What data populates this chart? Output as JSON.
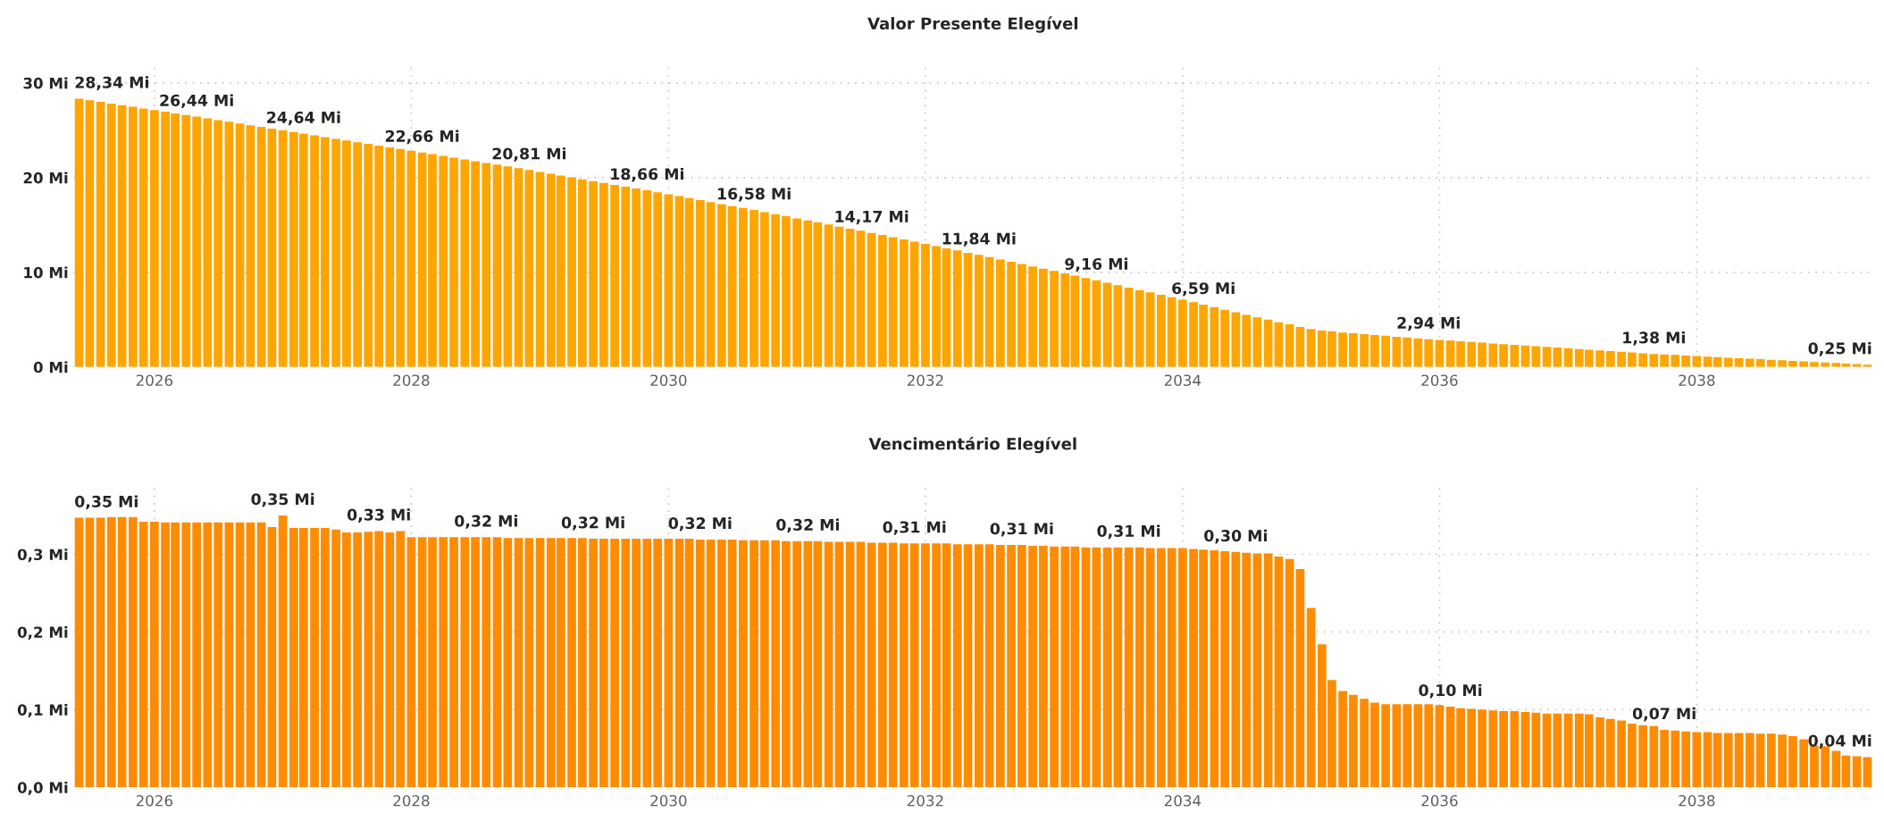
{
  "chart_data": [
    {
      "type": "bar",
      "title": "Valor Presente Elegível",
      "x": [
        "2025-06",
        "2025-07",
        "2025-08",
        "2025-09",
        "2025-10",
        "2025-11",
        "2025-12",
        "2026-01",
        "2026-02",
        "2026-03",
        "2026-04",
        "2026-05",
        "2026-06",
        "2026-07",
        "2026-08",
        "2026-09",
        "2026-10",
        "2026-11",
        "2026-12",
        "2027-01",
        "2027-02",
        "2027-03",
        "2027-04",
        "2027-05",
        "2027-06",
        "2027-07",
        "2027-08",
        "2027-09",
        "2027-10",
        "2027-11",
        "2027-12",
        "2028-01",
        "2028-02",
        "2028-03",
        "2028-04",
        "2028-05",
        "2028-06",
        "2028-07",
        "2028-08",
        "2028-09",
        "2028-10",
        "2028-11",
        "2028-12",
        "2029-01",
        "2029-02",
        "2029-03",
        "2029-04",
        "2029-05",
        "2029-06",
        "2029-07",
        "2029-08",
        "2029-09",
        "2029-10",
        "2029-11",
        "2029-12",
        "2030-01",
        "2030-02",
        "2030-03",
        "2030-04",
        "2030-05",
        "2030-06",
        "2030-07",
        "2030-08",
        "2030-09",
        "2030-10",
        "2030-11",
        "2030-12",
        "2031-01",
        "2031-02",
        "2031-03",
        "2031-04",
        "2031-05",
        "2031-06",
        "2031-07",
        "2031-08",
        "2031-09",
        "2031-10",
        "2031-11",
        "2031-12",
        "2032-01",
        "2032-02",
        "2032-03",
        "2032-04",
        "2032-05",
        "2032-06",
        "2032-07",
        "2032-08",
        "2032-09",
        "2032-10",
        "2032-11",
        "2032-12",
        "2033-01",
        "2033-02",
        "2033-03",
        "2033-04",
        "2033-05",
        "2033-06",
        "2033-07",
        "2033-08",
        "2033-09",
        "2033-10",
        "2033-11",
        "2033-12",
        "2034-01",
        "2034-02",
        "2034-03",
        "2034-04",
        "2034-05",
        "2034-06",
        "2034-07",
        "2034-08",
        "2034-09",
        "2034-10",
        "2034-11",
        "2034-12",
        "2035-01",
        "2035-02",
        "2035-03",
        "2035-04",
        "2035-05",
        "2035-06",
        "2035-07",
        "2035-08",
        "2035-09",
        "2035-10",
        "2035-11",
        "2035-12",
        "2036-01",
        "2036-02",
        "2036-03",
        "2036-04",
        "2036-05",
        "2036-06",
        "2036-07",
        "2036-08",
        "2036-09",
        "2036-10",
        "2036-11",
        "2036-12",
        "2037-01",
        "2037-02",
        "2037-03",
        "2037-04",
        "2037-05",
        "2037-06",
        "2037-07",
        "2037-08",
        "2037-09",
        "2037-10",
        "2037-11",
        "2037-12",
        "2038-01",
        "2038-02",
        "2038-03",
        "2038-04",
        "2038-05",
        "2038-06",
        "2038-07",
        "2038-08",
        "2038-09",
        "2038-10",
        "2038-11",
        "2038-12",
        "2039-01",
        "2039-02",
        "2039-03",
        "2039-04",
        "2039-05"
      ],
      "values": [
        28.34,
        28.17,
        28.0,
        27.82,
        27.65,
        27.48,
        27.3,
        27.13,
        26.96,
        26.79,
        26.61,
        26.44,
        26.26,
        26.08,
        25.9,
        25.72,
        25.54,
        25.36,
        25.18,
        25.0,
        24.82,
        24.64,
        24.46,
        24.28,
        24.1,
        23.92,
        23.74,
        23.56,
        23.38,
        23.2,
        23.02,
        22.84,
        22.66,
        22.48,
        22.29,
        22.11,
        21.92,
        21.74,
        21.55,
        21.37,
        21.18,
        21.0,
        20.81,
        20.61,
        20.42,
        20.22,
        20.03,
        19.83,
        19.64,
        19.44,
        19.24,
        19.05,
        18.85,
        18.66,
        18.45,
        18.24,
        18.04,
        17.83,
        17.62,
        17.41,
        17.2,
        17.0,
        16.79,
        16.58,
        16.36,
        16.14,
        15.92,
        15.7,
        15.48,
        15.27,
        15.05,
        14.83,
        14.61,
        14.39,
        14.17,
        13.94,
        13.7,
        13.47,
        13.24,
        13.01,
        12.77,
        12.54,
        12.31,
        12.07,
        11.84,
        11.6,
        11.35,
        11.11,
        10.87,
        10.62,
        10.38,
        10.14,
        9.89,
        9.65,
        9.4,
        9.16,
        8.9,
        8.65,
        8.39,
        8.13,
        7.88,
        7.62,
        7.36,
        7.1,
        6.85,
        6.59,
        6.32,
        6.05,
        5.78,
        5.51,
        5.25,
        5.0,
        4.72,
        4.51,
        4.22,
        4.02,
        3.85,
        3.77,
        3.64,
        3.56,
        3.48,
        3.38,
        3.3,
        3.2,
        3.12,
        3.03,
        2.94,
        2.87,
        2.79,
        2.72,
        2.64,
        2.57,
        2.49,
        2.42,
        2.35,
        2.27,
        2.2,
        2.12,
        2.05,
        1.98,
        1.9,
        1.83,
        1.75,
        1.68,
        1.6,
        1.53,
        1.45,
        1.38,
        1.32,
        1.27,
        1.21,
        1.15,
        1.1,
        1.04,
        0.98,
        0.93,
        0.87,
        0.82,
        0.76,
        0.7,
        0.65,
        0.59,
        0.53,
        0.48,
        0.42,
        0.36,
        0.31,
        0.25
      ],
      "color": "#ffa500",
      "xlim": [
        "2025-05-16",
        "2039-05-16"
      ],
      "xticks": [
        {
          "value": "2026-01-01",
          "label": "2026"
        },
        {
          "value": "2028-01-01",
          "label": "2028"
        },
        {
          "value": "2030-01-01",
          "label": "2030"
        },
        {
          "value": "2032-01-01",
          "label": "2032"
        },
        {
          "value": "2034-01-01",
          "label": "2034"
        },
        {
          "value": "2036-01-01",
          "label": "2036"
        },
        {
          "value": "2038-01-01",
          "label": "2038"
        }
      ],
      "ylim": [
        0,
        32
      ],
      "yticks": [
        {
          "value": 0,
          "label": "0 Mi"
        },
        {
          "value": 10,
          "label": "10 Mi"
        },
        {
          "value": 20,
          "label": "20 Mi"
        },
        {
          "value": 30,
          "label": "30 Mi"
        }
      ],
      "grid": true,
      "annotations": [
        {
          "text": "28,34 Mi",
          "x": "2025-06",
          "y": 28.34
        },
        {
          "text": "26,44 Mi",
          "x": "2026-05",
          "y": 26.44
        },
        {
          "text": "24,64 Mi",
          "x": "2027-03",
          "y": 24.64
        },
        {
          "text": "22,66 Mi",
          "x": "2028-02",
          "y": 22.66
        },
        {
          "text": "20,81 Mi",
          "x": "2028-12",
          "y": 20.81
        },
        {
          "text": "18,66 Mi",
          "x": "2029-11",
          "y": 18.66
        },
        {
          "text": "16,58 Mi",
          "x": "2030-09",
          "y": 16.58
        },
        {
          "text": "14,17 Mi",
          "x": "2031-08",
          "y": 14.17
        },
        {
          "text": "11,84 Mi",
          "x": "2032-06",
          "y": 11.84
        },
        {
          "text": "9,16 Mi",
          "x": "2033-05",
          "y": 9.16
        },
        {
          "text": "6,59 Mi",
          "x": "2034-03",
          "y": 6.59
        },
        {
          "text": "2,94 Mi",
          "x": "2035-12",
          "y": 2.94
        },
        {
          "text": "1,38 Mi",
          "x": "2037-09",
          "y": 1.38
        },
        {
          "text": "0,25 Mi",
          "x": "2039-05",
          "y": 0.25
        }
      ]
    },
    {
      "type": "bar",
      "title": "Vencimentário Elegível",
      "x": [
        "2025-06",
        "2025-07",
        "2025-08",
        "2025-09",
        "2025-10",
        "2025-11",
        "2025-12",
        "2026-01",
        "2026-02",
        "2026-03",
        "2026-04",
        "2026-05",
        "2026-06",
        "2026-07",
        "2026-08",
        "2026-09",
        "2026-10",
        "2026-11",
        "2026-12",
        "2027-01",
        "2027-02",
        "2027-03",
        "2027-04",
        "2027-05",
        "2027-06",
        "2027-07",
        "2027-08",
        "2027-09",
        "2027-10",
        "2027-11",
        "2027-12",
        "2028-01",
        "2028-02",
        "2028-03",
        "2028-04",
        "2028-05",
        "2028-06",
        "2028-07",
        "2028-08",
        "2028-09",
        "2028-10",
        "2028-11",
        "2028-12",
        "2029-01",
        "2029-02",
        "2029-03",
        "2029-04",
        "2029-05",
        "2029-06",
        "2029-07",
        "2029-08",
        "2029-09",
        "2029-10",
        "2029-11",
        "2029-12",
        "2030-01",
        "2030-02",
        "2030-03",
        "2030-04",
        "2030-05",
        "2030-06",
        "2030-07",
        "2030-08",
        "2030-09",
        "2030-10",
        "2030-11",
        "2030-12",
        "2031-01",
        "2031-02",
        "2031-03",
        "2031-04",
        "2031-05",
        "2031-06",
        "2031-07",
        "2031-08",
        "2031-09",
        "2031-10",
        "2031-11",
        "2031-12",
        "2032-01",
        "2032-02",
        "2032-03",
        "2032-04",
        "2032-05",
        "2032-06",
        "2032-07",
        "2032-08",
        "2032-09",
        "2032-10",
        "2032-11",
        "2032-12",
        "2033-01",
        "2033-02",
        "2033-03",
        "2033-04",
        "2033-05",
        "2033-06",
        "2033-07",
        "2033-08",
        "2033-09",
        "2033-10",
        "2033-11",
        "2033-12",
        "2034-01",
        "2034-02",
        "2034-03",
        "2034-04",
        "2034-05",
        "2034-06",
        "2034-07",
        "2034-08",
        "2034-09",
        "2034-10",
        "2034-11",
        "2034-12",
        "2035-01",
        "2035-02",
        "2035-03",
        "2035-04",
        "2035-05",
        "2035-06",
        "2035-07",
        "2035-08",
        "2035-09",
        "2035-10",
        "2035-11",
        "2035-12",
        "2036-01",
        "2036-02",
        "2036-03",
        "2036-04",
        "2036-05",
        "2036-06",
        "2036-07",
        "2036-08",
        "2036-09",
        "2036-10",
        "2036-11",
        "2036-12",
        "2037-01",
        "2037-02",
        "2037-03",
        "2037-04",
        "2037-05",
        "2037-06",
        "2037-07",
        "2037-08",
        "2037-09",
        "2037-10",
        "2037-11",
        "2037-12",
        "2038-01",
        "2038-02",
        "2038-03",
        "2038-04",
        "2038-05",
        "2038-06",
        "2038-07",
        "2038-08",
        "2038-09",
        "2038-10",
        "2038-11",
        "2038-12",
        "2039-01",
        "2039-02",
        "2039-03",
        "2039-04",
        "2039-05"
      ],
      "values": [
        0.347,
        0.347,
        0.347,
        0.348,
        0.348,
        0.348,
        0.342,
        0.342,
        0.341,
        0.341,
        0.341,
        0.341,
        0.341,
        0.341,
        0.341,
        0.341,
        0.341,
        0.341,
        0.335,
        0.35,
        0.334,
        0.334,
        0.334,
        0.334,
        0.332,
        0.328,
        0.328,
        0.329,
        0.33,
        0.328,
        0.33,
        0.322,
        0.322,
        0.322,
        0.322,
        0.322,
        0.322,
        0.322,
        0.322,
        0.322,
        0.321,
        0.321,
        0.321,
        0.321,
        0.321,
        0.321,
        0.321,
        0.321,
        0.32,
        0.32,
        0.32,
        0.32,
        0.32,
        0.32,
        0.32,
        0.32,
        0.32,
        0.32,
        0.319,
        0.319,
        0.319,
        0.319,
        0.318,
        0.318,
        0.318,
        0.318,
        0.317,
        0.317,
        0.317,
        0.317,
        0.316,
        0.316,
        0.316,
        0.316,
        0.315,
        0.315,
        0.315,
        0.314,
        0.314,
        0.314,
        0.314,
        0.314,
        0.313,
        0.313,
        0.313,
        0.313,
        0.312,
        0.312,
        0.312,
        0.311,
        0.311,
        0.31,
        0.31,
        0.31,
        0.309,
        0.309,
        0.309,
        0.309,
        0.309,
        0.309,
        0.308,
        0.308,
        0.308,
        0.308,
        0.307,
        0.306,
        0.305,
        0.304,
        0.303,
        0.302,
        0.301,
        0.301,
        0.297,
        0.294,
        0.281,
        0.231,
        0.184,
        0.138,
        0.124,
        0.119,
        0.114,
        0.109,
        0.107,
        0.107,
        0.107,
        0.107,
        0.107,
        0.106,
        0.104,
        0.102,
        0.101,
        0.1,
        0.099,
        0.098,
        0.098,
        0.097,
        0.096,
        0.095,
        0.095,
        0.095,
        0.095,
        0.094,
        0.09,
        0.088,
        0.086,
        0.082,
        0.08,
        0.079,
        0.074,
        0.073,
        0.072,
        0.071,
        0.071,
        0.07,
        0.07,
        0.07,
        0.07,
        0.069,
        0.069,
        0.068,
        0.066,
        0.062,
        0.054,
        0.053,
        0.047,
        0.041,
        0.04,
        0.039
      ],
      "color": "#ff8c00",
      "xlim": [
        "2025-05-16",
        "2039-05-16"
      ],
      "xticks": [
        {
          "value": "2026-01-01",
          "label": "2026"
        },
        {
          "value": "2028-01-01",
          "label": "2028"
        },
        {
          "value": "2030-01-01",
          "label": "2030"
        },
        {
          "value": "2032-01-01",
          "label": "2032"
        },
        {
          "value": "2034-01-01",
          "label": "2034"
        },
        {
          "value": "2036-01-01",
          "label": "2036"
        },
        {
          "value": "2038-01-01",
          "label": "2038"
        }
      ],
      "ylim": [
        0,
        0.39
      ],
      "yticks": [
        {
          "value": 0,
          "label": "0,0 Mi"
        },
        {
          "value": 0.1,
          "label": "0,1 Mi"
        },
        {
          "value": 0.2,
          "label": "0,2 Mi"
        },
        {
          "value": 0.3,
          "label": "0,3 Mi"
        }
      ],
      "grid": true,
      "annotations": [
        {
          "text": "0,35 Mi",
          "x": "2025-06",
          "y": 0.347
        },
        {
          "text": "0,35 Mi",
          "x": "2027-01",
          "y": 0.35
        },
        {
          "text": "0,33 Mi",
          "x": "2027-10",
          "y": 0.33
        },
        {
          "text": "0,32 Mi",
          "x": "2028-08",
          "y": 0.322
        },
        {
          "text": "0,32 Mi",
          "x": "2029-06",
          "y": 0.32
        },
        {
          "text": "0,32 Mi",
          "x": "2030-04",
          "y": 0.319
        },
        {
          "text": "0,32 Mi",
          "x": "2031-02",
          "y": 0.317
        },
        {
          "text": "0,31 Mi",
          "x": "2031-12",
          "y": 0.314
        },
        {
          "text": "0,31 Mi",
          "x": "2032-10",
          "y": 0.312
        },
        {
          "text": "0,31 Mi",
          "x": "2033-08",
          "y": 0.309
        },
        {
          "text": "0,30 Mi",
          "x": "2034-06",
          "y": 0.303
        },
        {
          "text": "0,10 Mi",
          "x": "2036-02",
          "y": 0.104
        },
        {
          "text": "0,07 Mi",
          "x": "2037-10",
          "y": 0.074
        },
        {
          "text": "0,04 Mi",
          "x": "2039-05",
          "y": 0.039
        }
      ]
    }
  ]
}
